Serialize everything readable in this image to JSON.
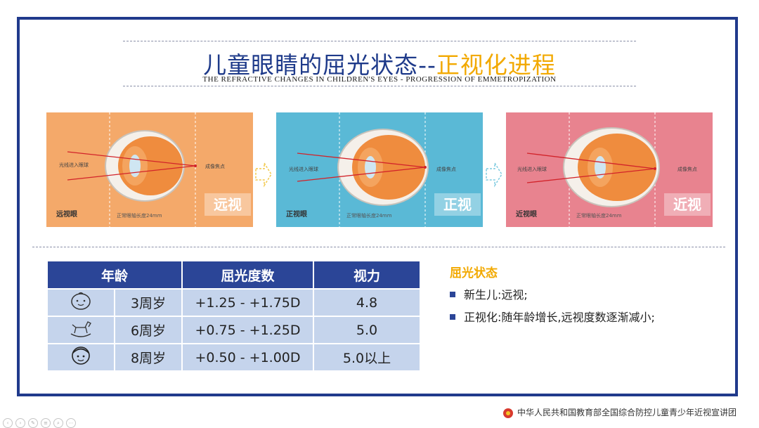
{
  "header": {
    "title_main": "儿童眼睛的屈光状态--",
    "title_highlight": "正视化进程",
    "subtitle": "THE REFRACTIVE CHANGES IN CHILDREN'S EYES - PROGRESSION OF  EMMETROPIZATION"
  },
  "panels": [
    {
      "eye_name": "远视眼",
      "state": "远视",
      "light_label": "光线进入眼球",
      "focus_label": "成像焦点",
      "axis_label": "正常眼轴长度24mm",
      "bg": "#f4a96a"
    },
    {
      "eye_name": "正视眼",
      "state": "正视",
      "light_label": "光线进入眼球",
      "focus_label": "成像焦点",
      "axis_label": "正常眼轴长度24mm",
      "bg": "#5ab9d6"
    },
    {
      "eye_name": "近视眼",
      "state": "近视",
      "light_label": "光线进入眼球",
      "focus_label": "成像焦点",
      "axis_label": "正常眼轴长度24mm",
      "bg": "#e8838f"
    }
  ],
  "table": {
    "headers": [
      "年龄",
      "屈光度数",
      "视力"
    ],
    "rows": [
      {
        "icon": "baby-face-icon",
        "age": "3周岁",
        "diopter": "+1.25 - +1.75D",
        "vision": "4.8"
      },
      {
        "icon": "rocking-horse-icon",
        "age": "6周岁",
        "diopter": "+0.75 - +1.25D",
        "vision": "5.0"
      },
      {
        "icon": "child-face-icon",
        "age": "8周岁",
        "diopter": "+0.50 - +1.00D",
        "vision": "5.0以上"
      }
    ]
  },
  "refraction": {
    "title": "屈光状态",
    "bullets": [
      "新生儿:远视;",
      "正视化:随年龄增长,远视度数逐渐减小;"
    ]
  },
  "footer": {
    "text": "中华人民共和国教育部全国综合防控儿童青少年近视宣讲团"
  },
  "colors": {
    "frame": "#203a8c",
    "title": "#1e3a8a",
    "highlight": "#f2a900",
    "table_header": "#2b4597",
    "table_cell": "#c5d4ec"
  }
}
